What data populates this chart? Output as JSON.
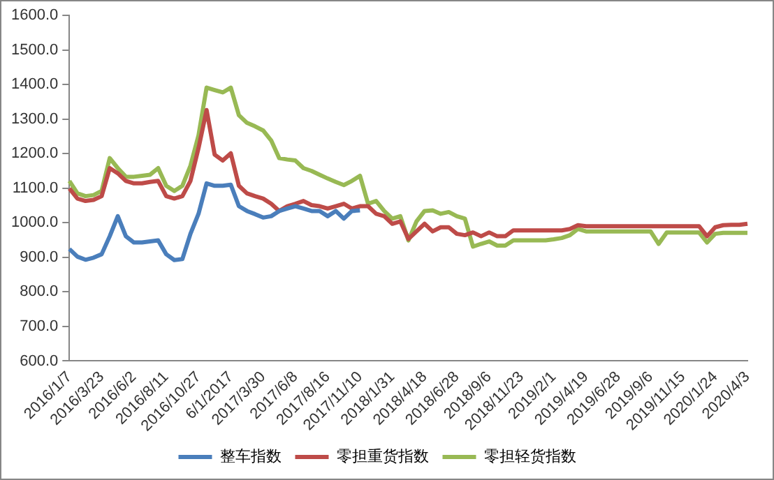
{
  "chart_data": {
    "type": "line",
    "categories": [
      "2016/1/7",
      null,
      null,
      null,
      "2016/3/23",
      null,
      null,
      null,
      "2016/6/2",
      null,
      null,
      null,
      "2016/8/11",
      null,
      null,
      null,
      "2016/10/27",
      null,
      null,
      null,
      "6/1/2017",
      null,
      null,
      null,
      "2017/3/30",
      null,
      null,
      null,
      "2017/6/8",
      null,
      null,
      null,
      "2017/8/16",
      null,
      null,
      null,
      "2017/11/10",
      null,
      null,
      null,
      "2018/1/31",
      null,
      null,
      null,
      "2018/4/18",
      null,
      null,
      null,
      "2018/6/28",
      null,
      null,
      null,
      "2018/9/6",
      null,
      null,
      null,
      "2018/11/23",
      null,
      null,
      null,
      "2019/2/1",
      null,
      null,
      null,
      "2019/4/19",
      null,
      null,
      null,
      "2019/6/28",
      null,
      null,
      null,
      "2019/9/6",
      null,
      null,
      null,
      "2019/11/15",
      null,
      null,
      null,
      "2020/1/24",
      null,
      null,
      null,
      "2020/4/3"
    ],
    "series": [
      {
        "name": "整车指数",
        "color": "#4a7ebb",
        "values": [
          924,
          902,
          893,
          899,
          909,
          961,
          1019,
          961,
          943,
          943,
          946,
          949,
          909,
          892,
          895,
          968,
          1026,
          1114,
          1107,
          1107,
          1110,
          1048,
          1034,
          1025,
          1015,
          1019,
          1034,
          1041,
          1048,
          1041,
          1034,
          1034,
          1019,
          1034,
          1012,
          1034,
          1036,
          null,
          null,
          null,
          null,
          null,
          null,
          null,
          null,
          null,
          null,
          null,
          null,
          null,
          null,
          null,
          null,
          null,
          null,
          null,
          null,
          null,
          null,
          null,
          null,
          null,
          null,
          null,
          null,
          null,
          null,
          null,
          null,
          null,
          null,
          null,
          null,
          null,
          null,
          null,
          null,
          null,
          null,
          null,
          null,
          null,
          null,
          null,
          null
        ]
      },
      {
        "name": "零担重货指数",
        "color": "#be4b48",
        "values": [
          1099,
          1070,
          1063,
          1066,
          1077,
          1158,
          1143,
          1121,
          1114,
          1114,
          1118,
          1121,
          1077,
          1070,
          1077,
          1121,
          1216,
          1326,
          1197,
          1180,
          1201,
          1107,
          1085,
          1077,
          1070,
          1055,
          1034,
          1048,
          1055,
          1063,
          1051,
          1048,
          1041,
          1048,
          1055,
          1041,
          1048,
          1048,
          1026,
          1019,
          997,
          1004,
          953,
          975,
          997,
          975,
          987,
          987,
          968,
          964,
          972,
          961,
          972,
          961,
          961,
          978,
          978,
          978,
          978,
          978,
          978,
          978,
          982,
          993,
          990,
          990,
          990,
          990,
          990,
          990,
          990,
          990,
          990,
          990,
          990,
          990,
          990,
          990,
          990,
          961,
          987,
          993,
          994,
          994,
          997
        ]
      },
      {
        "name": "零担轻货指数",
        "color": "#98b954",
        "values": [
          1121,
          1085,
          1077,
          1080,
          1092,
          1187,
          1158,
          1133,
          1133,
          1136,
          1139,
          1158,
          1107,
          1092,
          1107,
          1165,
          1253,
          1391,
          1384,
          1377,
          1391,
          1311,
          1289,
          1279,
          1267,
          1238,
          1187,
          1183,
          1180,
          1158,
          1150,
          1139,
          1128,
          1118,
          1109,
          1121,
          1136,
          1055,
          1063,
          1034,
          1012,
          1019,
          949,
          1004,
          1034,
          1036,
          1026,
          1031,
          1019,
          1012,
          931,
          939,
          946,
          934,
          934,
          949,
          949,
          949,
          949,
          949,
          952,
          956,
          964,
          982,
          975,
          975,
          975,
          975,
          975,
          975,
          975,
          975,
          975,
          939,
          972,
          972,
          972,
          972,
          972,
          943,
          968,
          971,
          971,
          971,
          971
        ]
      }
    ],
    "ylim": [
      600,
      1600
    ],
    "yticks": [
      {
        "value": 600,
        "label": "600.0"
      },
      {
        "value": 700,
        "label": "700.0"
      },
      {
        "value": 800,
        "label": "800.0"
      },
      {
        "value": 900,
        "label": "900.0"
      },
      {
        "value": 1000,
        "label": "1000.0"
      },
      {
        "value": 1100,
        "label": "1100.0"
      },
      {
        "value": 1200,
        "label": "1200.0"
      },
      {
        "value": 1300,
        "label": "1300.0"
      },
      {
        "value": 1400,
        "label": "1400.0"
      },
      {
        "value": 1500,
        "label": "1500.0"
      },
      {
        "value": 1600,
        "label": "1600.0"
      }
    ],
    "grid": false,
    "legend": "bottom",
    "marker": "none",
    "line_style": "solid"
  }
}
